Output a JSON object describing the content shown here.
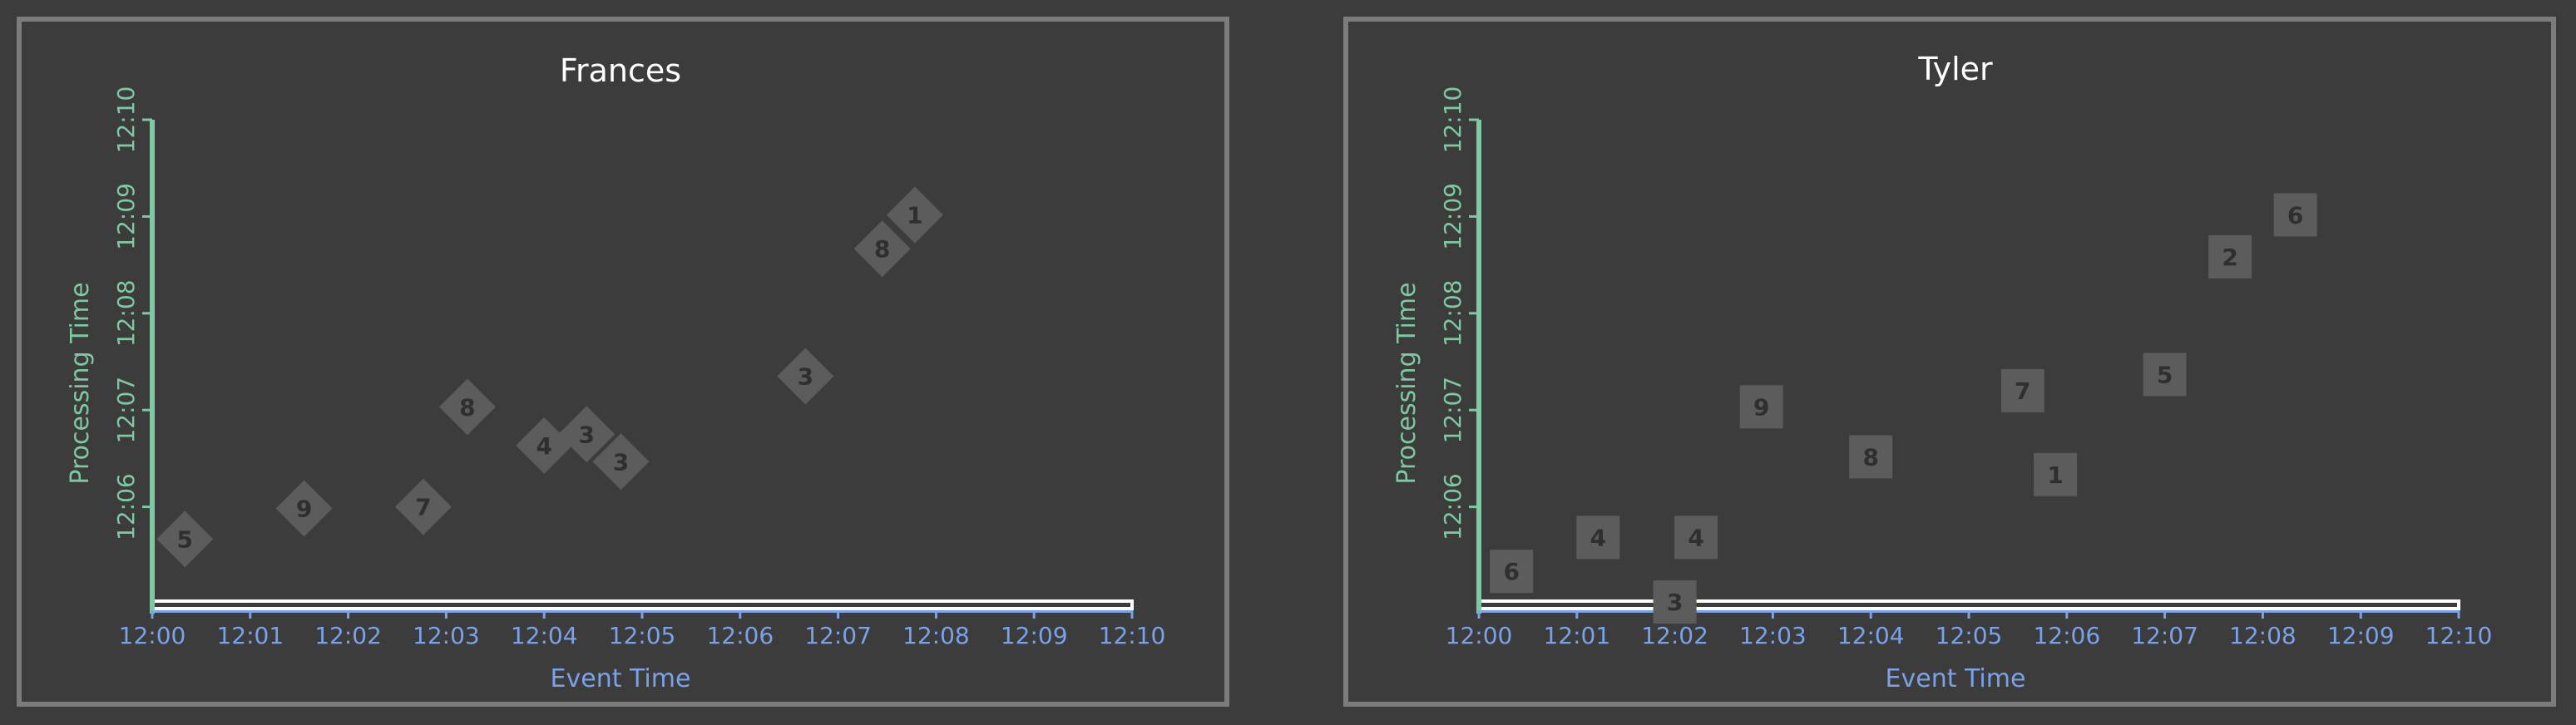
{
  "chart_data": [
    {
      "type": "scatter",
      "title": "Frances",
      "xlabel": "Event Time",
      "ylabel": "Processing Time",
      "x_ticks": [
        "12:00",
        "12:01",
        "12:02",
        "12:03",
        "12:04",
        "12:05",
        "12:06",
        "12:07",
        "12:08",
        "12:09",
        "12:10"
      ],
      "y_ticks": [
        "12:06",
        "12:07",
        "12:08",
        "12:09",
        "12:10"
      ],
      "xlim": [
        "12:00",
        "12:10"
      ],
      "ylim": [
        "12:05",
        "12:10"
      ],
      "marker": "diamond",
      "points": [
        {
          "x": "12:00:20",
          "y": "12:05:40",
          "label": "5"
        },
        {
          "x": "12:01:33",
          "y": "12:05:59",
          "label": "9"
        },
        {
          "x": "12:02:46",
          "y": "12:06:00",
          "label": "7"
        },
        {
          "x": "12:03:13",
          "y": "12:07:02",
          "label": "8"
        },
        {
          "x": "12:04:00",
          "y": "12:06:38",
          "label": "4"
        },
        {
          "x": "12:04:26",
          "y": "12:06:45",
          "label": "3"
        },
        {
          "x": "12:04:47",
          "y": "12:06:28",
          "label": "3"
        },
        {
          "x": "12:06:40",
          "y": "12:07:21",
          "label": "3"
        },
        {
          "x": "12:07:27",
          "y": "12:08:40",
          "label": "8"
        },
        {
          "x": "12:07:47",
          "y": "12:09:01",
          "label": "1"
        }
      ]
    },
    {
      "type": "scatter",
      "title": "Tyler",
      "xlabel": "Event Time",
      "ylabel": "Processing Time",
      "x_ticks": [
        "12:00",
        "12:01",
        "12:02",
        "12:03",
        "12:04",
        "12:05",
        "12:06",
        "12:07",
        "12:08",
        "12:09",
        "12:10"
      ],
      "y_ticks": [
        "12:06",
        "12:07",
        "12:08",
        "12:09",
        "12:10"
      ],
      "xlim": [
        "12:00",
        "12:10"
      ],
      "ylim": [
        "12:05",
        "12:10"
      ],
      "marker": "square",
      "points": [
        {
          "x": "12:00:20",
          "y": "12:05:20",
          "label": "6"
        },
        {
          "x": "12:01:13",
          "y": "12:05:41",
          "label": "4"
        },
        {
          "x": "12:02:00",
          "y": "12:05:01",
          "label": "3"
        },
        {
          "x": "12:02:13",
          "y": "12:05:41",
          "label": "4"
        },
        {
          "x": "12:02:53",
          "y": "12:07:02",
          "label": "9"
        },
        {
          "x": "12:03:60",
          "y": "12:06:31",
          "label": "8"
        },
        {
          "x": "12:05:33",
          "y": "12:07:12",
          "label": "7"
        },
        {
          "x": "12:05:53",
          "y": "12:06:20",
          "label": "1"
        },
        {
          "x": "12:06:60",
          "y": "12:07:22",
          "label": "5"
        },
        {
          "x": "12:07:40",
          "y": "12:08:35",
          "label": "2"
        },
        {
          "x": "12:08:20",
          "y": "12:09:01",
          "label": "6"
        }
      ]
    }
  ]
}
